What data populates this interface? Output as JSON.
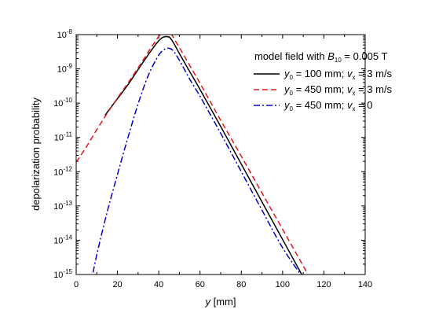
{
  "chart_data": {
    "type": "line",
    "title": "",
    "xlabel_var": "y",
    "xlabel_unit": " [mm]",
    "ylabel": "depolarization probability",
    "xlim": [
      0,
      140
    ],
    "ylim_log10": [
      -15,
      -8
    ],
    "y_scale": "log",
    "grid": false,
    "legend_position": "top-right",
    "x_ticks": [
      "0",
      "20",
      "40",
      "60",
      "80",
      "100",
      "120",
      "140"
    ],
    "y_ticks": [
      {
        "base": "10",
        "exp": "-8",
        "value_log10": -8
      },
      {
        "base": "10",
        "exp": "-9",
        "value_log10": -9
      },
      {
        "base": "10",
        "exp": "-10",
        "value_log10": -10
      },
      {
        "base": "10",
        "exp": "-11",
        "value_log10": -11
      },
      {
        "base": "10",
        "exp": "-12",
        "value_log10": -12
      },
      {
        "base": "10",
        "exp": "-13",
        "value_log10": -13
      },
      {
        "base": "10",
        "exp": "-14",
        "value_log10": -14
      },
      {
        "base": "10",
        "exp": "-15",
        "value_log10": -15
      }
    ],
    "legend_title": {
      "prefix": "model field with ",
      "var": "B",
      "sub": "10",
      "suffix": " = 0.005 T"
    },
    "series": [
      {
        "legend": {
          "y0": "y",
          "y0_sub": "0",
          "y0_text": " = 100 mm; ",
          "vx": "v",
          "vx_sub": "x",
          "vx_text": " = 3 m/s"
        },
        "color": "#000000",
        "dash": "",
        "x": [
          14,
          20,
          25,
          30,
          35,
          38,
          40,
          42,
          44,
          46,
          50,
          55,
          60,
          70,
          80,
          90,
          100,
          110
        ],
        "log10_y": [
          -10.35,
          -9.87,
          -9.47,
          -9.02,
          -8.58,
          -8.33,
          -8.18,
          -8.08,
          -8.06,
          -8.13,
          -8.55,
          -9.08,
          -9.6,
          -10.68,
          -11.78,
          -12.88,
          -13.98,
          -15.08
        ]
      },
      {
        "legend": {
          "y0": "y",
          "y0_sub": "0",
          "y0_text": " = 450 mm; ",
          "vx": "v",
          "vx_sub": "x",
          "vx_text": " = 3 m/s"
        },
        "color": "#e8141b",
        "dash": "7,4",
        "x": [
          0,
          5,
          10,
          15,
          20,
          25,
          30,
          35,
          38,
          40,
          42,
          44,
          46,
          48,
          50,
          55,
          60,
          70,
          80,
          90,
          100,
          110,
          115
        ],
        "log10_y": [
          -11.72,
          -11.27,
          -10.77,
          -10.3,
          -9.85,
          -9.42,
          -8.97,
          -8.5,
          -8.23,
          -8.05,
          -7.95,
          -7.92,
          -7.98,
          -8.18,
          -8.38,
          -8.9,
          -9.42,
          -10.5,
          -11.55,
          -12.62,
          -13.68,
          -14.75,
          -15.3
        ]
      },
      {
        "legend": {
          "y0": "y",
          "y0_sub": "0",
          "y0_text": " = 450 mm; ",
          "vx": "v",
          "vx_sub": "x",
          "vx_text": " = 0"
        },
        "color": "#0000cc",
        "dash": "8,3,2,3",
        "x": [
          7,
          10,
          15,
          20,
          25,
          30,
          35,
          40,
          43,
          45,
          47,
          50,
          55,
          60,
          70,
          80,
          90,
          100,
          110,
          113
        ],
        "log10_y": [
          -15.3,
          -14.42,
          -13.18,
          -12.08,
          -11.02,
          -10.02,
          -9.18,
          -8.6,
          -8.42,
          -8.4,
          -8.47,
          -8.75,
          -9.3,
          -9.8,
          -10.88,
          -12.0,
          -13.12,
          -14.22,
          -15.1,
          -15.3
        ]
      }
    ]
  }
}
